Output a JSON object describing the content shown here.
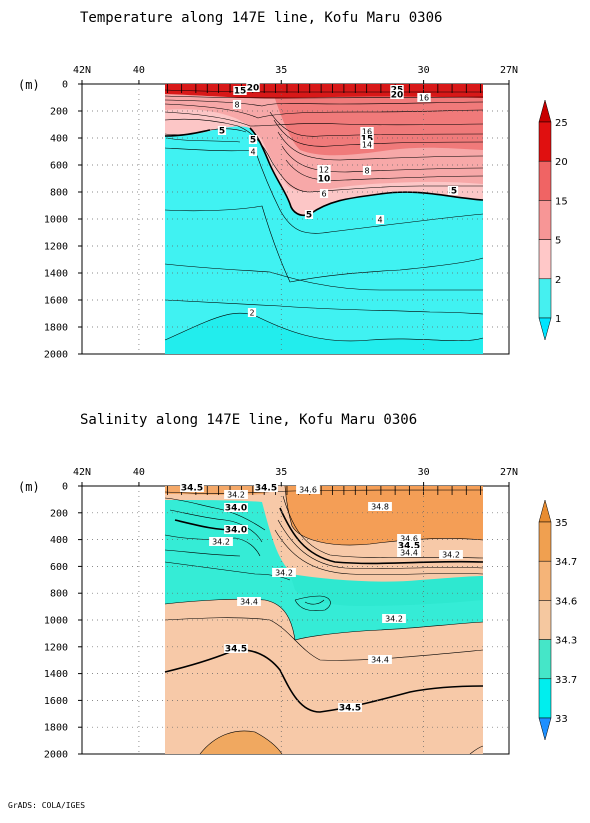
{
  "credit": "GrADS: COLA/IGES",
  "chart_data": [
    {
      "type": "contour",
      "title": "Temperature along 147E line, Kofu Maru 0306",
      "unit_label": "(m)",
      "x_ticks": [
        "42N",
        "40",
        "35",
        "30",
        "27N"
      ],
      "x_tick_values": [
        42,
        40,
        35,
        30,
        27
      ],
      "xlim": [
        42,
        27
      ],
      "y_ticks": [
        "0",
        "200",
        "400",
        "600",
        "800",
        "1000",
        "1200",
        "1400",
        "1600",
        "1800",
        "2000"
      ],
      "ylim": [
        0,
        2000
      ],
      "data_extent_lat": [
        39.0,
        28.0
      ],
      "legend_levels": [
        "1",
        "2",
        "5",
        "15",
        "20",
        "25"
      ],
      "legend_colors": [
        "#00e5ff",
        "#45f0f0",
        "#ffc8c8",
        "#f79696",
        "#f06464",
        "#e01010",
        "#c80000"
      ],
      "contour_labels": [
        "15",
        "20",
        "25",
        "20",
        "16",
        "8",
        "5",
        "5",
        "4",
        "16",
        "15",
        "14",
        "12",
        "10",
        "8",
        "6",
        "5",
        "5",
        "5",
        "4",
        "2"
      ],
      "fill_colors": {
        "cold": "#40f2f2",
        "bottom": "#20eeee",
        "warm": "#f5a3a3",
        "warmer": "#f07070",
        "surface": "#d81818"
      }
    },
    {
      "type": "contour",
      "title": "Salinity along 147E line, Kofu Maru 0306",
      "unit_label": "(m)",
      "x_ticks": [
        "42N",
        "40",
        "35",
        "30",
        "27N"
      ],
      "x_tick_values": [
        42,
        40,
        35,
        30,
        27
      ],
      "xlim": [
        42,
        27
      ],
      "y_ticks": [
        "0",
        "200",
        "400",
        "600",
        "800",
        "1000",
        "1200",
        "1400",
        "1600",
        "1800",
        "2000"
      ],
      "ylim": [
        0,
        2000
      ],
      "data_extent_lat": [
        39.0,
        28.0
      ],
      "legend_levels": [
        "33",
        "33.7",
        "34.3",
        "34.6",
        "34.7",
        "35"
      ],
      "legend_colors": [
        "#1e90ff",
        "#00eeee",
        "#45e6c8",
        "#f5c8a0",
        "#f5b478",
        "#f0a050",
        "#e88c30"
      ],
      "contour_labels": [
        "34.5",
        "34.2",
        "34.5",
        "34.6",
        "34.0",
        "34.0",
        "34.2",
        "34.8",
        "34.6",
        "34.5",
        "34.4",
        "34.2",
        "34.2",
        "34.4",
        "34.2",
        "34.5",
        "34.4",
        "34.5"
      ],
      "fill_colors": {
        "fresh": "#30eed8",
        "mid": "#f7c9a8",
        "deep_orange": "#f4a058",
        "bottom": "#f2ae78"
      }
    }
  ]
}
